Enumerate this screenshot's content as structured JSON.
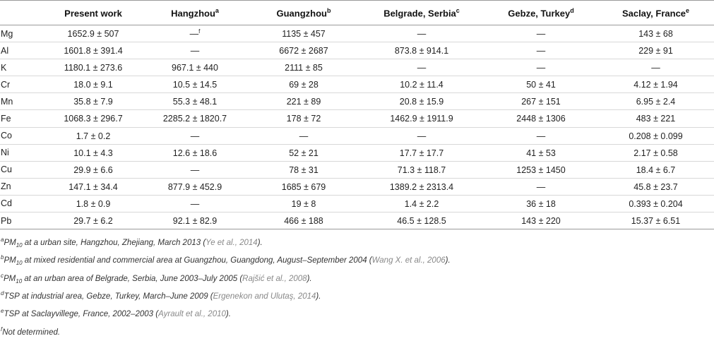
{
  "table": {
    "headers": [
      {
        "label": "",
        "sup": ""
      },
      {
        "label": "Present work",
        "sup": ""
      },
      {
        "label": "Hangzhou",
        "sup": "a"
      },
      {
        "label": "Guangzhou",
        "sup": "b"
      },
      {
        "label": "Belgrade, Serbia",
        "sup": "c"
      },
      {
        "label": "Gebze, Turkey",
        "sup": "d"
      },
      {
        "label": "Saclay, France",
        "sup": "e"
      }
    ],
    "rows": [
      {
        "element": "Mg",
        "cells": [
          "1652.9 ± 507",
          "—",
          "1135 ± 457",
          "—",
          "—",
          "143 ± 68"
        ],
        "cell_sups": [
          "",
          "f",
          "",
          "",
          "",
          ""
        ]
      },
      {
        "element": "Al",
        "cells": [
          "1601.8 ± 391.4",
          "—",
          "6672 ± 2687",
          "873.8 ± 914.1",
          "—",
          "229 ± 91"
        ],
        "cell_sups": [
          "",
          "",
          "",
          "",
          "",
          ""
        ]
      },
      {
        "element": "K",
        "cells": [
          "1180.1 ± 273.6",
          "967.1 ± 440",
          "2111 ± 85",
          "—",
          "—",
          "—"
        ],
        "cell_sups": [
          "",
          "",
          "",
          "",
          "",
          ""
        ]
      },
      {
        "element": "Cr",
        "cells": [
          "18.0 ± 9.1",
          "10.5 ± 14.5",
          "69 ± 28",
          "10.2 ± 11.4",
          "50 ± 41",
          "4.12 ± 1.94"
        ],
        "cell_sups": [
          "",
          "",
          "",
          "",
          "",
          ""
        ]
      },
      {
        "element": "Mn",
        "cells": [
          "35.8 ± 7.9",
          "55.3 ± 48.1",
          "221 ± 89",
          "20.8 ± 15.9",
          "267 ± 151",
          "6.95 ± 2.4"
        ],
        "cell_sups": [
          "",
          "",
          "",
          "",
          "",
          ""
        ]
      },
      {
        "element": "Fe",
        "cells": [
          "1068.3 ± 296.7",
          "2285.2 ± 1820.7",
          "178 ± 72",
          "1462.9 ± 1911.9",
          "2448 ± 1306",
          "483 ± 221"
        ],
        "cell_sups": [
          "",
          "",
          "",
          "",
          "",
          ""
        ]
      },
      {
        "element": "Co",
        "cells": [
          "1.7 ± 0.2",
          "—",
          "—",
          "—",
          "—",
          "0.208 ± 0.099"
        ],
        "cell_sups": [
          "",
          "",
          "",
          "",
          "",
          ""
        ]
      },
      {
        "element": "Ni",
        "cells": [
          "10.1 ± 4.3",
          "12.6 ± 18.6",
          "52 ± 21",
          "17.7 ± 17.7",
          "41 ± 53",
          "2.17 ± 0.58"
        ],
        "cell_sups": [
          "",
          "",
          "",
          "",
          "",
          ""
        ]
      },
      {
        "element": "Cu",
        "cells": [
          "29.9 ± 6.6",
          "—",
          "78 ± 31",
          "71.3 ± 118.7",
          "1253 ± 1450",
          "18.4 ± 6.7"
        ],
        "cell_sups": [
          "",
          "",
          "",
          "",
          "",
          ""
        ]
      },
      {
        "element": "Zn",
        "cells": [
          "147.1 ± 34.4",
          "877.9 ± 452.9",
          "1685 ± 679",
          "1389.2 ± 2313.4",
          "—",
          "45.8 ± 23.7"
        ],
        "cell_sups": [
          "",
          "",
          "",
          "",
          "",
          ""
        ]
      },
      {
        "element": "Cd",
        "cells": [
          "1.8 ± 0.9",
          "—",
          "19 ± 8",
          "1.4 ± 2.2",
          "36 ± 18",
          "0.393 ± 0.204"
        ],
        "cell_sups": [
          "",
          "",
          "",
          "",
          "",
          ""
        ]
      },
      {
        "element": "Pb",
        "cells": [
          "29.7 ± 6.2",
          "92.1 ± 82.9",
          "466 ± 188",
          "46.5 ± 128.5",
          "143 ± 220",
          "15.37 ± 6.51"
        ],
        "cell_sups": [
          "",
          "",
          "",
          "",
          "",
          ""
        ]
      }
    ]
  },
  "footnotes": [
    {
      "mark": "a",
      "prefix": "PM",
      "sub": "10",
      "text": " at a urban site, Hangzhou, Zhejiang, March 2013 (",
      "ref": "Ye et al., 2014",
      "suffix": ")."
    },
    {
      "mark": "b",
      "prefix": "PM",
      "sub": "10",
      "text": " at mixed residential and commercial area at Guangzhou, Guangdong, August–September 2004 (",
      "ref": "Wang X. et al., 2006",
      "suffix": ")."
    },
    {
      "mark": "c",
      "prefix": "PM",
      "sub": "10",
      "text": " at an urban area of Belgrade, Serbia, June 2003–July 2005 (",
      "ref": "Rajšić et al., 2008",
      "suffix": ")."
    },
    {
      "mark": "d",
      "prefix": "TSP",
      "sub": "",
      "text": " at industrial area, Gebze, Turkey, March–June 2009 (",
      "ref": "Ergenekon and Ulutaş, 2014",
      "suffix": ")."
    },
    {
      "mark": "e",
      "prefix": "TSP",
      "sub": "",
      "text": " at Saclayvillege, France, 2002–2003 (",
      "ref": "Ayrault et al., 2010",
      "suffix": ")."
    },
    {
      "mark": "f",
      "prefix": "Not determined.",
      "sub": "",
      "text": "",
      "ref": "",
      "suffix": ""
    }
  ]
}
